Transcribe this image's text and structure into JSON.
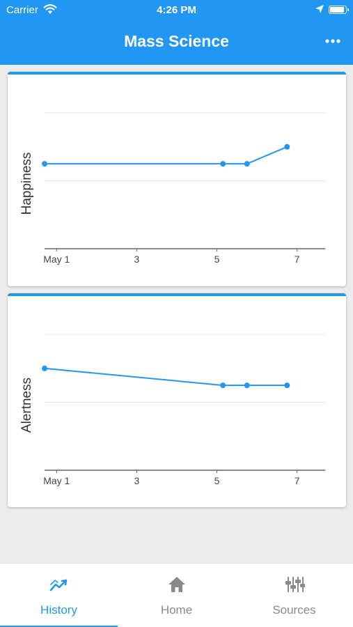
{
  "status_bar": {
    "carrier": "Carrier",
    "time": "4:26 PM"
  },
  "header": {
    "title": "Mass Science"
  },
  "colors": {
    "accent": "#2196f3",
    "grid": "#e4e4e4",
    "axis": "#666666"
  },
  "chart_data": [
    {
      "type": "line",
      "ylabel": "Happiness",
      "x_ticks": [
        "May 1",
        "3",
        "5",
        "7"
      ],
      "x_tick_days": [
        1,
        3,
        5,
        7
      ],
      "x_range_days": [
        0.7,
        7.7
      ],
      "y_range": [
        0,
        2
      ],
      "y_gridlines": [
        1,
        2
      ],
      "points": [
        {
          "day": 0.7,
          "value": 1.25
        },
        {
          "day": 5.15,
          "value": 1.25
        },
        {
          "day": 5.75,
          "value": 1.25
        },
        {
          "day": 6.75,
          "value": 1.5
        }
      ]
    },
    {
      "type": "line",
      "ylabel": "Alertness",
      "x_ticks": [
        "May 1",
        "3",
        "5",
        "7"
      ],
      "x_tick_days": [
        1,
        3,
        5,
        7
      ],
      "x_range_days": [
        0.7,
        7.7
      ],
      "y_range": [
        0,
        2
      ],
      "y_gridlines": [
        1,
        2
      ],
      "points": [
        {
          "day": 0.7,
          "value": 1.5
        },
        {
          "day": 5.15,
          "value": 1.25
        },
        {
          "day": 5.75,
          "value": 1.25
        },
        {
          "day": 6.75,
          "value": 1.25
        }
      ]
    }
  ],
  "tabs": [
    {
      "label": "History",
      "icon": "trend-chart-icon",
      "active": true
    },
    {
      "label": "Home",
      "icon": "home-icon",
      "active": false
    },
    {
      "label": "Sources",
      "icon": "sliders-icon",
      "active": false
    }
  ]
}
